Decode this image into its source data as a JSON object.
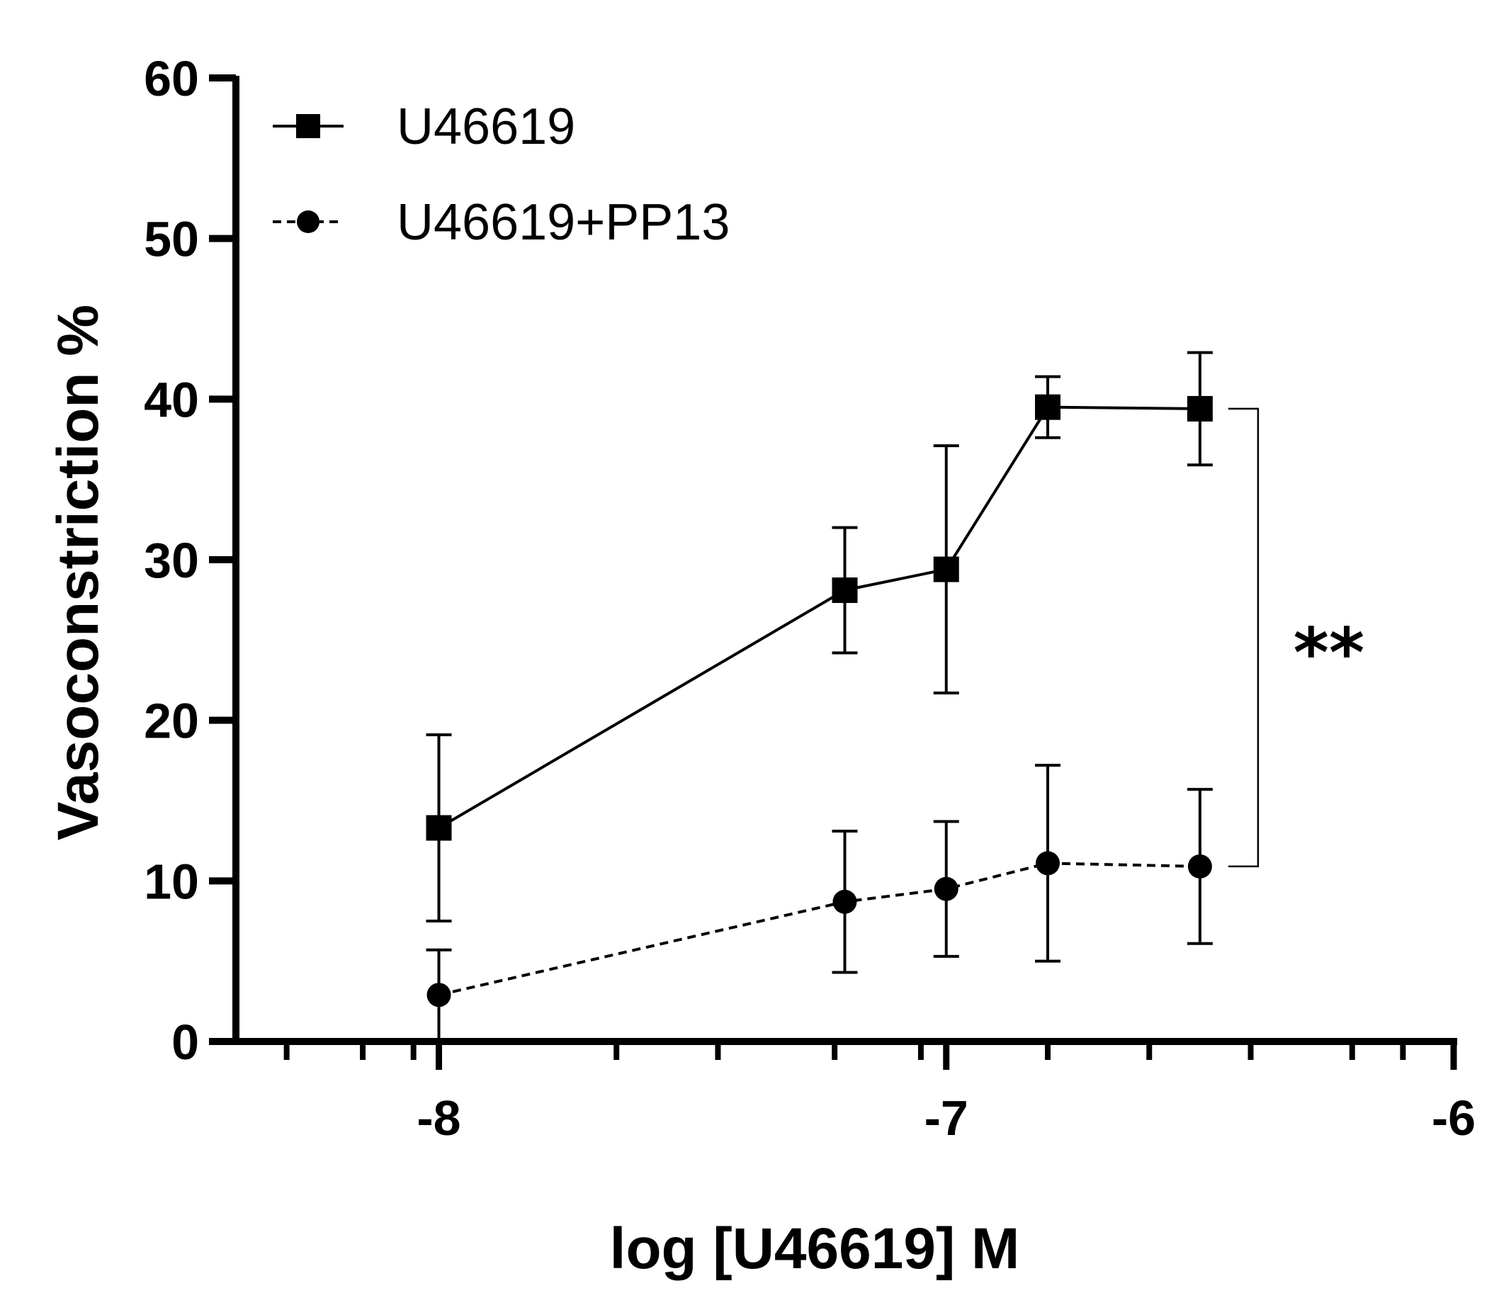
{
  "chart_data": {
    "type": "line",
    "xlabel": "log [U46619] M",
    "ylabel": "Vasoconstriction %",
    "xlim": [
      -8.4,
      -6
    ],
    "ylim": [
      0,
      60
    ],
    "x_ticks": [
      -8,
      -7,
      -6
    ],
    "x_tick_labels": [
      "-8",
      "-7",
      "-6"
    ],
    "y_ticks": [
      0,
      10,
      20,
      30,
      40,
      50,
      60
    ],
    "y_tick_labels": [
      "0",
      "10",
      "20",
      "30",
      "40",
      "50",
      "60"
    ],
    "x_minor_ticks": [
      -8.3,
      -8.15,
      -8.05,
      -7.65,
      -7.45,
      -7.22,
      -7.05,
      -6.8,
      -6.6,
      -6.4,
      -6.2,
      -6.1
    ],
    "grid": false,
    "legend_position": "top-left",
    "series": [
      {
        "name": "U46619",
        "marker": "square",
        "line_style": "solid",
        "color": "#000000",
        "x": [
          -8,
          -7.2,
          -7,
          -6.8,
          -6.5
        ],
        "y": [
          13.3,
          28.1,
          29.4,
          39.5,
          39.4
        ],
        "error": [
          5.8,
          3.9,
          7.7,
          1.9,
          3.5
        ]
      },
      {
        "name": "U46619+PP13",
        "marker": "circle",
        "line_style": "dashed",
        "color": "#000000",
        "x": [
          -8,
          -7.2,
          -7,
          -6.8,
          -6.5
        ],
        "y": [
          2.9,
          8.7,
          9.5,
          11.1,
          10.9
        ],
        "error": [
          2.8,
          4.4,
          4.2,
          6.1,
          4.8
        ]
      }
    ],
    "annotations": [
      {
        "text": "**",
        "between_series": [
          "U46619",
          "U46619+PP13"
        ]
      }
    ]
  }
}
